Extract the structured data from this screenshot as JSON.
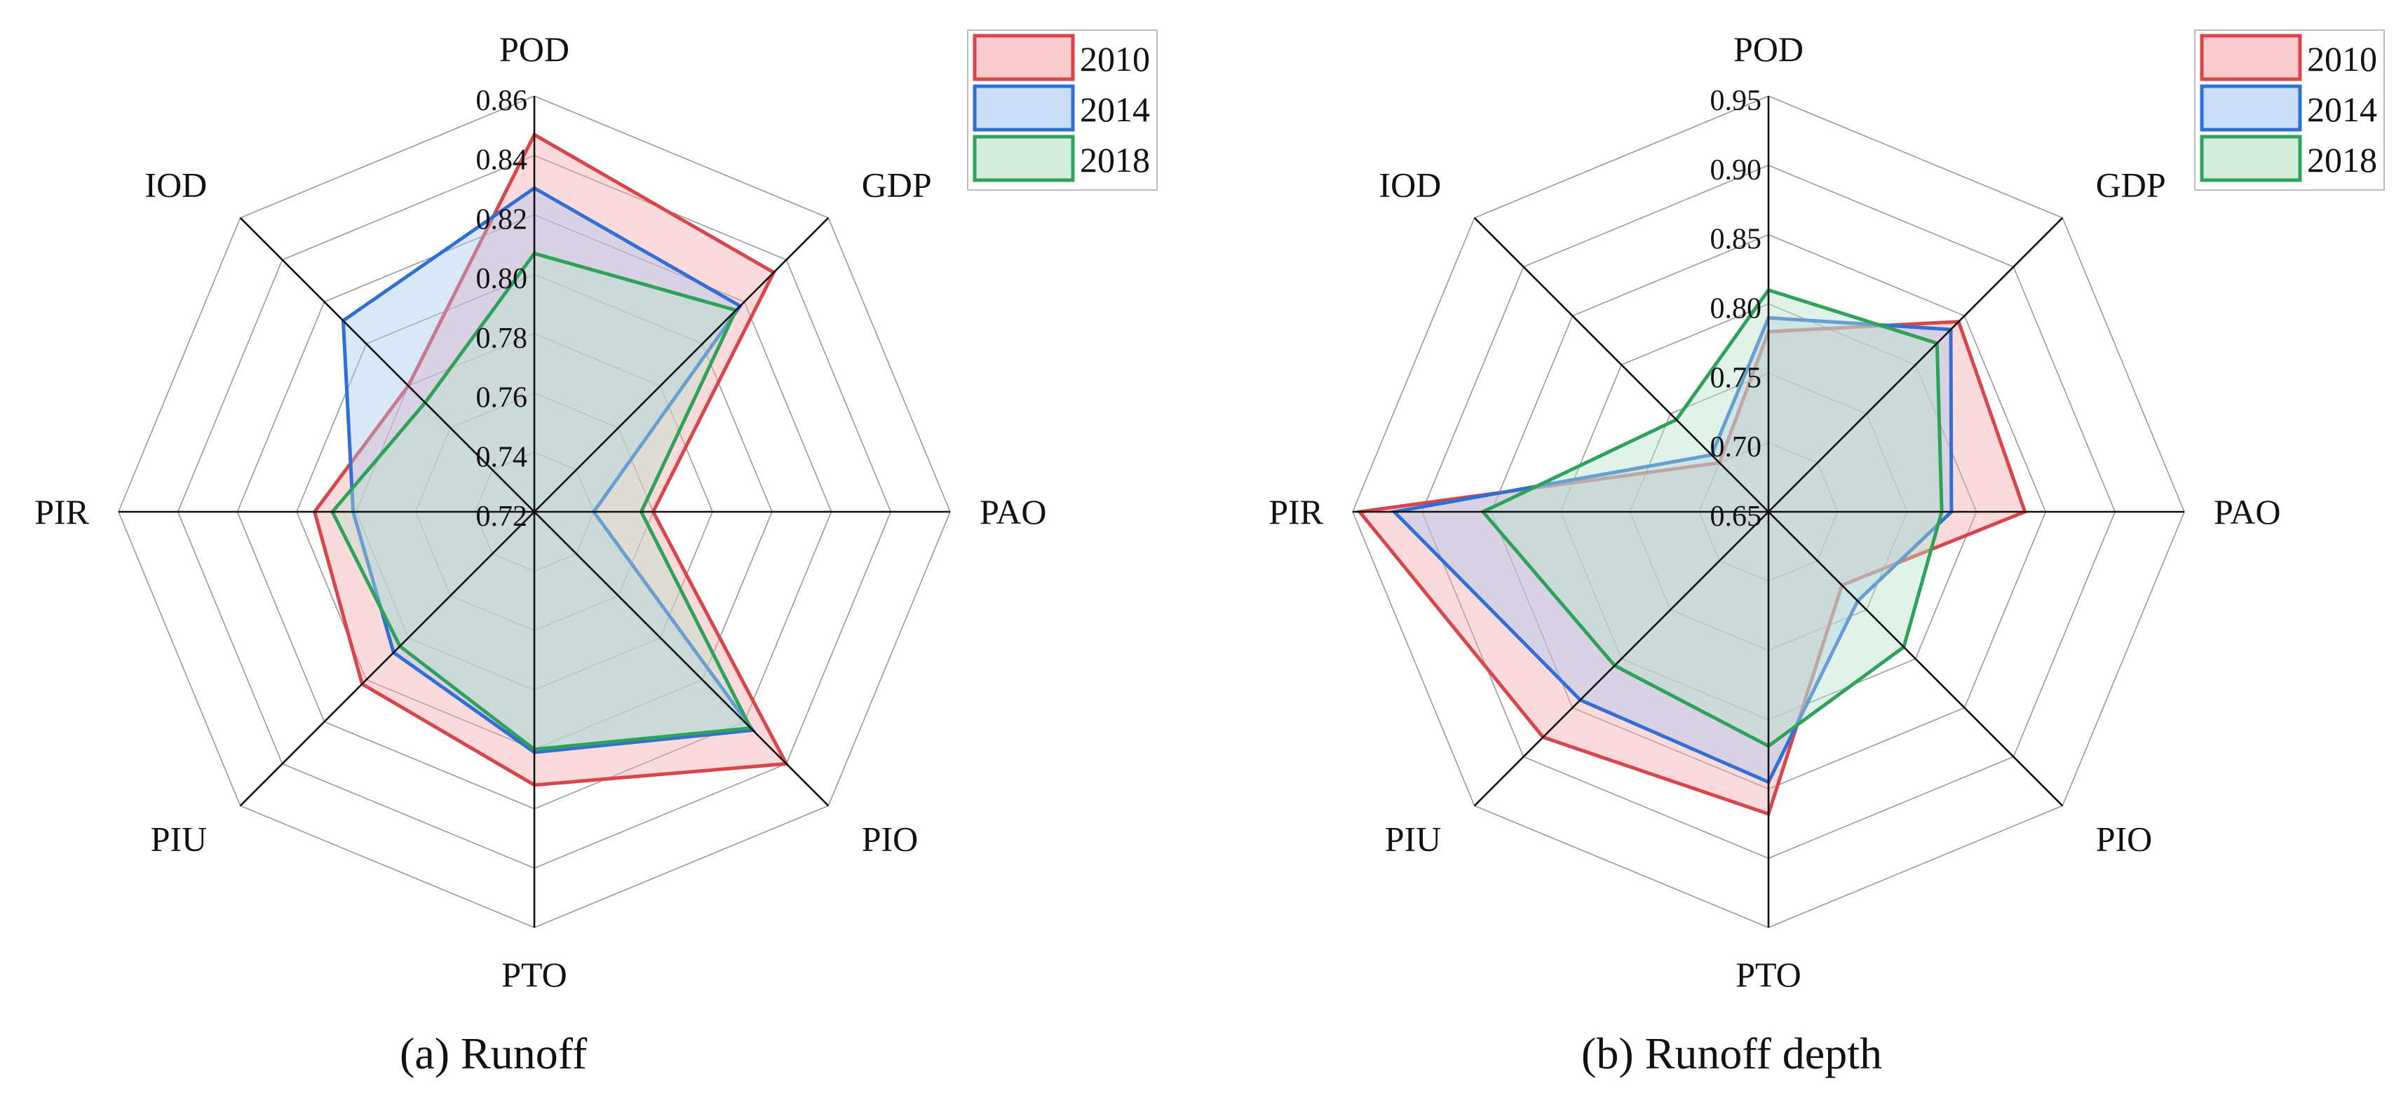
{
  "colors": {
    "2010": {
      "stroke": "#d9454a",
      "fill": "#f6a8aa"
    },
    "2014": {
      "stroke": "#2f6fd6",
      "fill": "#a9c8f2"
    },
    "2018": {
      "stroke": "#2ea15a",
      "fill": "#b7e3c7"
    },
    "grid": "#9a9a9a",
    "spoke": "#111111"
  },
  "chart_data": [
    {
      "type": "radar",
      "title": "(a) Runoff",
      "axes": [
        "POD",
        "GDP",
        "PAO",
        "PIO",
        "PTO",
        "PIU",
        "PIR",
        "IOD"
      ],
      "ylim": [
        0.72,
        0.86
      ],
      "ticks": [
        "0.72",
        "0.74",
        "0.76",
        "0.78",
        "0.80",
        "0.82",
        "0.84",
        "0.86"
      ],
      "legend": {
        "position": "top-right",
        "entries": [
          "2010",
          "2014",
          "2018"
        ]
      },
      "series": [
        {
          "name": "2010",
          "values": [
            0.847,
            0.834,
            0.76,
            0.84,
            0.812,
            0.802,
            0.794,
            0.78
          ]
        },
        {
          "name": "2014",
          "values": [
            0.829,
            0.818,
            0.74,
            0.824,
            0.801,
            0.787,
            0.781,
            0.811
          ]
        },
        {
          "name": "2018",
          "values": [
            0.807,
            0.816,
            0.756,
            0.823,
            0.8,
            0.784,
            0.788,
            0.772
          ]
        }
      ]
    },
    {
      "type": "radar",
      "title": "(b) Runoff depth",
      "axes": [
        "POD",
        "GDP",
        "PAO",
        "PIO",
        "PTO",
        "PIU",
        "PIR",
        "IOD"
      ],
      "ylim": [
        0.65,
        0.95
      ],
      "ticks": [
        "0.65",
        "0.70",
        "0.75",
        "0.80",
        "0.85",
        "0.90",
        "0.95"
      ],
      "legend": {
        "position": "top-right",
        "entries": [
          "2010",
          "2014",
          "2018"
        ]
      },
      "series": [
        {
          "name": "2010",
          "values": [
            0.78,
            0.844,
            0.835,
            0.725,
            0.868,
            0.88,
            0.945,
            0.7
          ]
        },
        {
          "name": "2014",
          "values": [
            0.79,
            0.836,
            0.782,
            0.741,
            0.845,
            0.842,
            0.92,
            0.708
          ]
        },
        {
          "name": "2018",
          "values": [
            0.81,
            0.822,
            0.775,
            0.788,
            0.819,
            0.807,
            0.856,
            0.744
          ]
        }
      ]
    }
  ]
}
